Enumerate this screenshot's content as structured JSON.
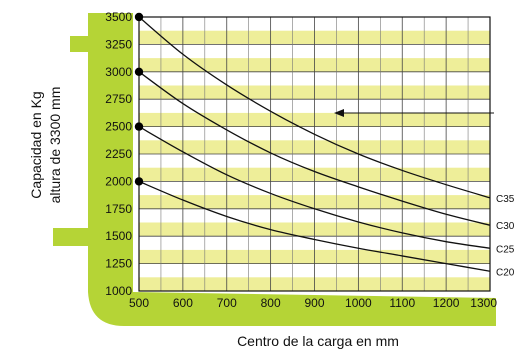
{
  "chart_data": {
    "type": "line",
    "xlabel": "Centro de la carga en mm",
    "ylabel_line1": "Capacidad en Kg",
    "ylabel_line2": "altura de 3300 mm",
    "xlim": [
      500,
      1300
    ],
    "ylim": [
      1000,
      3500
    ],
    "xticks": [
      500,
      600,
      700,
      800,
      900,
      1000,
      1100,
      1200,
      1300
    ],
    "yticks": [
      1000,
      1250,
      1500,
      1750,
      2000,
      2250,
      2500,
      2750,
      3000,
      3250,
      3500
    ],
    "x": [
      500,
      600,
      700,
      800,
      900,
      1000,
      1100,
      1200,
      1300
    ],
    "series": [
      {
        "name": "C35",
        "values": [
          3500,
          3160,
          2880,
          2640,
          2430,
          2250,
          2100,
          1970,
          1850
        ]
      },
      {
        "name": "C30",
        "values": [
          3000,
          2710,
          2470,
          2260,
          2090,
          1950,
          1820,
          1700,
          1600
        ]
      },
      {
        "name": "C25",
        "values": [
          2500,
          2270,
          2060,
          1890,
          1750,
          1630,
          1530,
          1450,
          1390
        ]
      },
      {
        "name": "C20",
        "values": [
          2000,
          1830,
          1680,
          1560,
          1470,
          1390,
          1320,
          1250,
          1180
        ]
      }
    ],
    "grid": true,
    "colors": {
      "band": "#eeee99",
      "line": "#111111",
      "fork": "#b5d436"
    }
  }
}
